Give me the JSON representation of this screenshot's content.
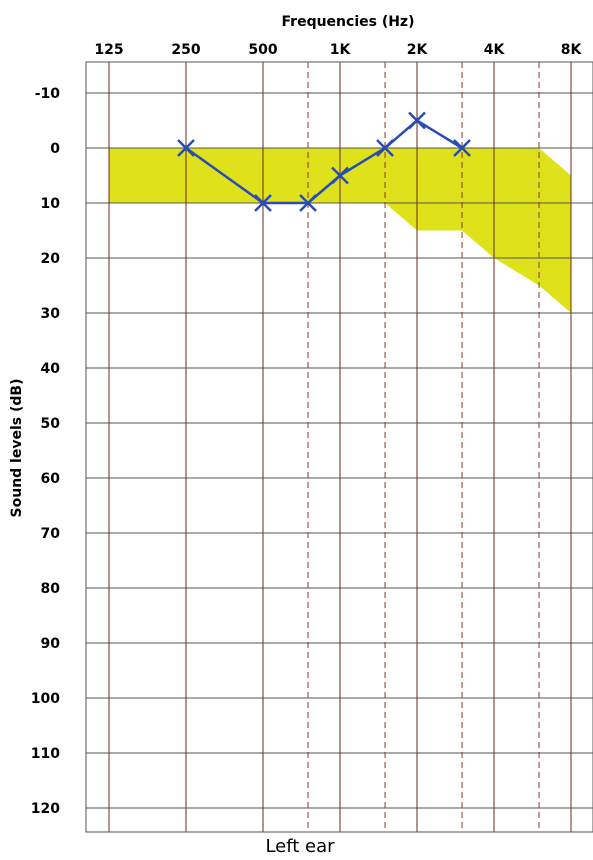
{
  "chart_data": {
    "type": "line",
    "chart_kind": "audiogram",
    "title": "Frequencies (Hz)",
    "xlabel": "Frequencies (Hz)",
    "ylabel": "Sound levels (dB)",
    "caption": "Left ear",
    "x_scale": "log2",
    "y_inverted": true,
    "ylim": [
      -15,
      125
    ],
    "grid": true,
    "x_ticks": [
      {
        "value": 125,
        "label": "125"
      },
      {
        "value": 250,
        "label": "250"
      },
      {
        "value": 500,
        "label": "500"
      },
      {
        "value": 1000,
        "label": "1K"
      },
      {
        "value": 2000,
        "label": "2K"
      },
      {
        "value": 4000,
        "label": "4K"
      },
      {
        "value": 8000,
        "label": "8K"
      }
    ],
    "x_half_octave_lines": [
      750,
      1500,
      3000,
      6000
    ],
    "y_ticks": [
      -10,
      0,
      10,
      20,
      30,
      40,
      50,
      60,
      70,
      80,
      90,
      100,
      110,
      120
    ],
    "series": [
      {
        "color": "#2a4db5",
        "marker": "x",
        "x": [
          250,
          500,
          750,
          1000,
          1500,
          2000,
          3000
        ],
        "y": [
          0,
          10,
          10,
          5,
          0,
          -5,
          0
        ]
      }
    ],
    "normal_range": {
      "color": "#dfe21a",
      "upper": [
        {
          "x": 125,
          "y": 0
        },
        {
          "x": 6000,
          "y": 0
        },
        {
          "x": 8000,
          "y": 5
        }
      ],
      "lower": [
        {
          "x": 125,
          "y": 10
        },
        {
          "x": 1500,
          "y": 10
        },
        {
          "x": 2000,
          "y": 15
        },
        {
          "x": 3000,
          "y": 15
        },
        {
          "x": 4000,
          "y": 20
        },
        {
          "x": 6000,
          "y": 25
        },
        {
          "x": 8000,
          "y": 30
        }
      ]
    }
  }
}
